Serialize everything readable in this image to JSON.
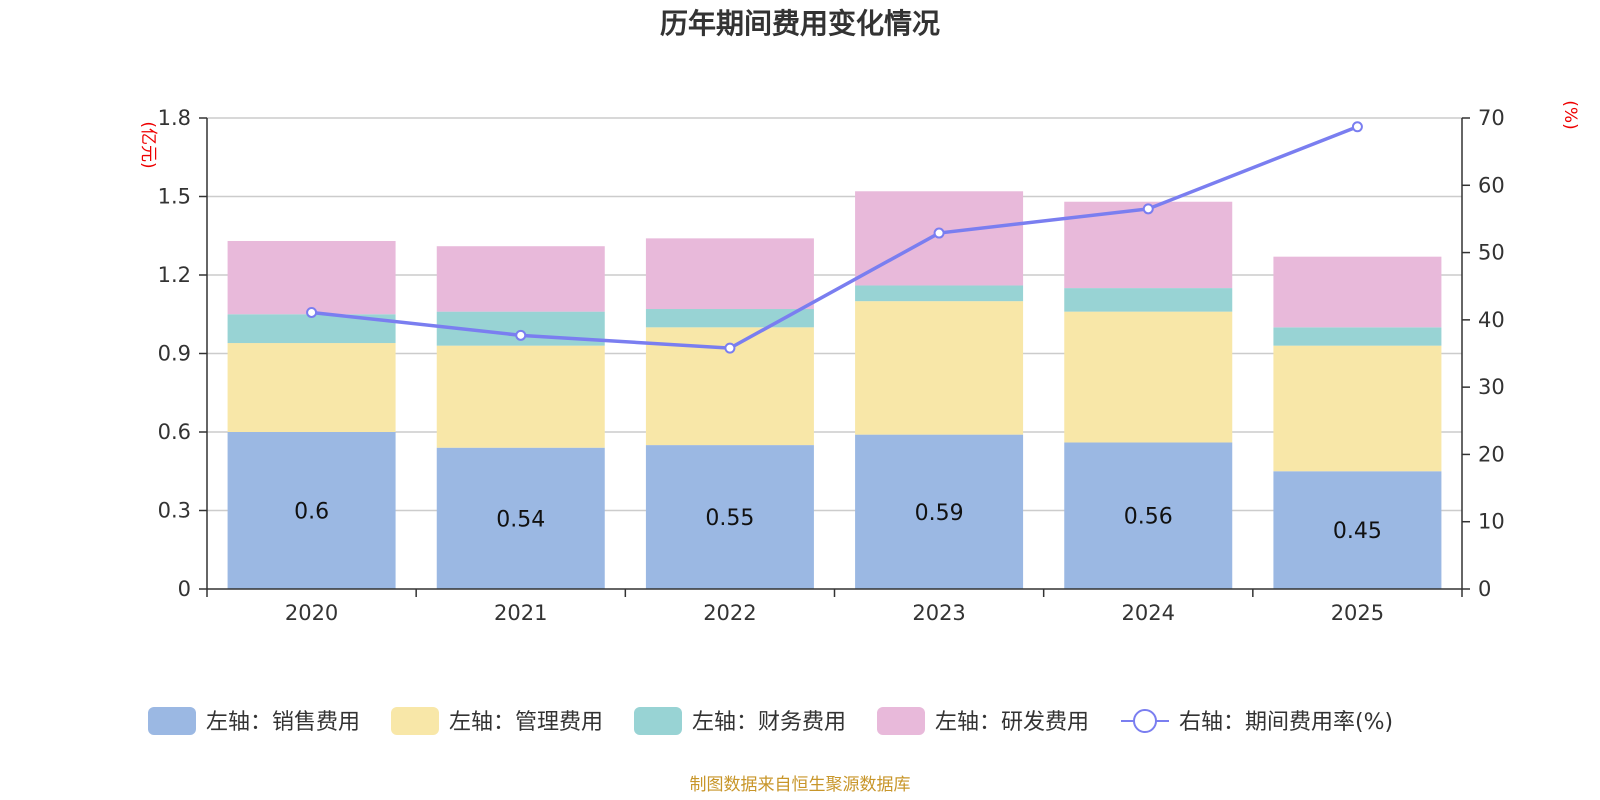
{
  "chart_data": {
    "type": "bar",
    "stacked": true,
    "title": "历年期间费用变化情况",
    "categories": [
      "2020",
      "2021",
      "2022",
      "2023",
      "2024",
      "2025"
    ],
    "y_left": {
      "unit": "(亿元)",
      "ylim": [
        0,
        1.8
      ],
      "ticks": [
        "0",
        "0.3",
        "0.6",
        "0.9",
        "1.2",
        "1.5",
        "1.8"
      ]
    },
    "y_right": {
      "unit": "(%)",
      "ylim": [
        0,
        70
      ],
      "ticks": [
        "0",
        "10",
        "20",
        "30",
        "40",
        "50",
        "60",
        "70"
      ]
    },
    "series": [
      {
        "name": "左轴：销售费用",
        "color": "#9bb8e3",
        "values": [
          0.6,
          0.54,
          0.55,
          0.59,
          0.56,
          0.45
        ],
        "labels": [
          "0.6",
          "0.54",
          "0.55",
          "0.59",
          "0.56",
          "0.45"
        ]
      },
      {
        "name": "左轴：管理费用",
        "color": "#f8e7a8",
        "values": [
          0.34,
          0.39,
          0.45,
          0.51,
          0.5,
          0.48
        ]
      },
      {
        "name": "左轴：财务费用",
        "color": "#98d3d4",
        "values": [
          0.11,
          0.13,
          0.07,
          0.06,
          0.09,
          0.07
        ]
      },
      {
        "name": "左轴：研发费用",
        "color": "#e8b9da",
        "values": [
          0.28,
          0.25,
          0.27,
          0.36,
          0.33,
          0.27
        ]
      }
    ],
    "line": {
      "name": "右轴：期间费用率(%)",
      "color": "#7a7ef0",
      "values": [
        41.1,
        37.7,
        35.8,
        52.9,
        56.5,
        68.7
      ]
    },
    "grid": true,
    "legend_position": "bottom"
  },
  "footer": {
    "source": "制图数据来自恒生聚源数据库"
  }
}
